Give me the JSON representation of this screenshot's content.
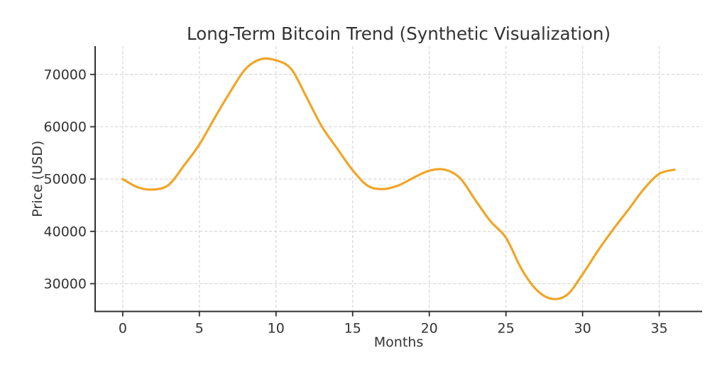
{
  "chart_data": {
    "type": "line",
    "title": "Long-Term Bitcoin Trend (Synthetic Visualization)",
    "xlabel": "Months",
    "ylabel": "Price (USD)",
    "x": [
      0,
      1,
      2,
      3,
      4,
      5,
      6,
      7,
      8,
      9,
      10,
      11,
      12,
      13,
      14,
      15,
      16,
      17,
      18,
      19,
      20,
      21,
      22,
      23,
      24,
      25,
      26,
      27,
      28,
      29,
      30,
      31,
      32,
      33,
      34,
      35,
      36
    ],
    "y": [
      50000,
      48400,
      48000,
      48900,
      52600,
      56600,
      61700,
      66600,
      71000,
      72900,
      72700,
      71000,
      65600,
      60000,
      55800,
      51700,
      48700,
      48100,
      48800,
      50300,
      51600,
      51800,
      50200,
      46000,
      41900,
      38800,
      32900,
      28800,
      27100,
      27900,
      31800,
      36300,
      40400,
      44200,
      48100,
      51000,
      51800
    ],
    "x_ticks": [
      0,
      5,
      10,
      15,
      20,
      25,
      30,
      35
    ],
    "x_tick_labels": [
      "0",
      "5",
      "10",
      "15",
      "20",
      "25",
      "30",
      "35"
    ],
    "y_ticks": [
      30000,
      40000,
      50000,
      60000,
      70000
    ],
    "y_tick_labels": [
      "30000",
      "40000",
      "50000",
      "60000",
      "70000"
    ],
    "xlim": [
      -1.8,
      37.8
    ],
    "ylim": [
      24700,
      75400
    ],
    "grid": true,
    "grid_style": "dashed",
    "legend": null,
    "annotations": [],
    "key_points": {
      "start": [
        0,
        50000
      ],
      "early_dip": [
        2,
        48000
      ],
      "peak": [
        9.4,
        73000
      ],
      "mid_min": [
        17,
        48100
      ],
      "mid_max": [
        20.7,
        51900
      ],
      "global_min": [
        28.3,
        27000
      ],
      "end": [
        36,
        51800
      ]
    },
    "colors": {
      "line": "#F0A528",
      "grid": "#d8d8d8",
      "spine": "#303030",
      "text": "#333333",
      "background": "#ffffff"
    },
    "line_width": 3.2
  }
}
